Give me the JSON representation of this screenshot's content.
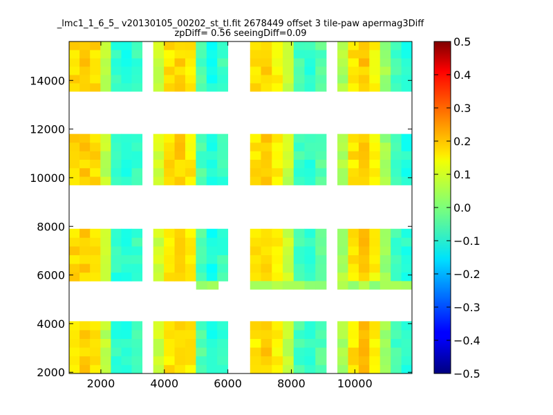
{
  "chart_data": {
    "type": "heatmap",
    "title_line1": "_lmc1_1_6_5_ v20130105_00202_st_tl.fit 2678449 offset 3 tile-paw apermag3Diff",
    "title_line2": "zpDiff= 0.56 seeingDiff=0.09",
    "xlabel": "",
    "ylabel": "",
    "xlim": [
      1000,
      11800
    ],
    "ylim": [
      1950,
      15600
    ],
    "x_ticks": [
      2000,
      4000,
      6000,
      8000,
      10000
    ],
    "y_ticks": [
      2000,
      4000,
      6000,
      8000,
      10000,
      12000,
      14000
    ],
    "colorbar": {
      "colormap": "jet",
      "range": [
        -0.5,
        0.5
      ],
      "ticks": [
        "0.5",
        "0.4",
        "0.3",
        "0.2",
        "0.1",
        "0.0",
        "−0.1",
        "−0.2",
        "−0.3",
        "−0.4",
        "−0.5"
      ]
    },
    "cell_size": [
      340,
      340
    ],
    "detector_columns": [
      {
        "x0": 1000,
        "x1": 3300
      },
      {
        "x0": 3650,
        "x1": 6000
      },
      {
        "x0": 6700,
        "x1": 9100
      },
      {
        "x0": 9450,
        "x1": 11800
      }
    ],
    "detector_rows": [
      {
        "y0": 1950,
        "y1": 4100
      },
      {
        "y0": 5750,
        "y1": 7900
      },
      {
        "y0": 9700,
        "y1": 11800
      },
      {
        "y0": 13550,
        "y1": 15600
      }
    ],
    "column_profiles": [
      [
        0.16,
        0.17,
        0.16,
        0.06,
        -0.08,
        -0.09,
        -0.07,
        0.03
      ],
      [
        0.08,
        0.15,
        0.17,
        0.14,
        -0.05,
        -0.1,
        -0.07,
        0.02
      ],
      [
        0.15,
        0.17,
        0.13,
        0.07,
        -0.06,
        -0.08,
        -0.04,
        0.03
      ],
      [
        0.04,
        0.15,
        0.18,
        0.13,
        0.03,
        -0.06,
        -0.09,
        -0.08
      ]
    ],
    "extra_strips": [
      {
        "x0": 5000,
        "x1": 5700,
        "y0": 5400,
        "y1": 5750,
        "value": 0.01
      },
      {
        "x0": 6700,
        "x1": 9100,
        "y0": 5400,
        "y1": 5750,
        "value": 0.03
      },
      {
        "x0": 9450,
        "x1": 11800,
        "y0": 5400,
        "y1": 5750,
        "value": 0.03
      }
    ]
  }
}
